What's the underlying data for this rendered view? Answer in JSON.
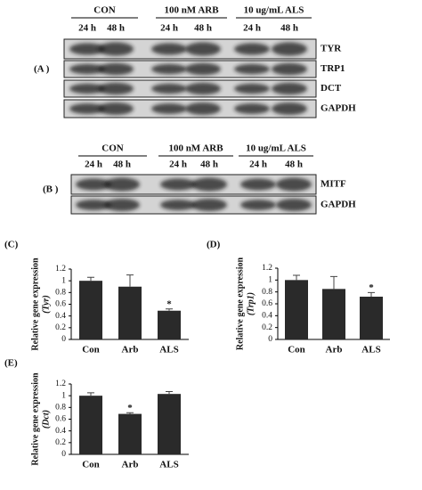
{
  "blots": [
    {
      "label": "(A )",
      "groups": [
        {
          "name": "CON",
          "times": [
            "24 h",
            "48 h"
          ]
        },
        {
          "name": "100 nM ARB",
          "times": [
            "24 h",
            "48 h"
          ]
        },
        {
          "name": "10 ug/mL ALS",
          "times": [
            "24 h",
            "48 h"
          ]
        }
      ],
      "rows": [
        "TYR",
        "TRP1",
        "DCT",
        "GAPDH"
      ]
    },
    {
      "label": "(B )",
      "groups": [
        {
          "name": "CON",
          "times": [
            "24 h",
            "48 h"
          ]
        },
        {
          "name": "100 nM ARB",
          "times": [
            "24 h",
            "48 h"
          ]
        },
        {
          "name": "10 ug/mL ALS",
          "times": [
            "24 h",
            "48 h"
          ]
        }
      ],
      "rows": [
        "MITF",
        "GAPDH"
      ]
    }
  ],
  "chart_data": [
    {
      "type": "bar",
      "title": "(C)",
      "ylabel": "Relative gene expression",
      "ylabel_sub": "(Tyr)",
      "categories": [
        "Con",
        "Arb",
        "ALS"
      ],
      "values": [
        1.0,
        0.9,
        0.49
      ],
      "errors": [
        0.06,
        0.2,
        0.03
      ],
      "markers": [
        null,
        null,
        "*"
      ],
      "color": "#2a2a2a",
      "ylim": [
        0,
        1.2
      ],
      "yticks": [
        0,
        0.2,
        0.4,
        0.6,
        0.8,
        1,
        1.2
      ]
    },
    {
      "type": "bar",
      "title": "(D)",
      "ylabel": "Relative gene expression",
      "ylabel_sub": "(Trp1)",
      "categories": [
        "Con",
        "Arb",
        "ALS"
      ],
      "values": [
        1.0,
        0.85,
        0.72
      ],
      "errors": [
        0.08,
        0.21,
        0.07
      ],
      "markers": [
        null,
        null,
        "*"
      ],
      "color": "#2a2a2a",
      "ylim": [
        0,
        1.2
      ],
      "yticks": [
        0,
        0.2,
        0.4,
        0.6,
        0.8,
        1,
        1.2
      ]
    },
    {
      "type": "bar",
      "title": "(E)",
      "ylabel": "Relative gene expression",
      "ylabel_sub": "(Dct)",
      "categories": [
        "Con",
        "Arb",
        "ALS"
      ],
      "values": [
        1.0,
        0.69,
        1.03
      ],
      "errors": [
        0.05,
        0.02,
        0.04
      ],
      "markers": [
        null,
        "*",
        null
      ],
      "color": "#2a2a2a",
      "ylim": [
        0,
        1.2
      ],
      "yticks": [
        0,
        0.2,
        0.4,
        0.6,
        0.8,
        1,
        1.2
      ]
    }
  ]
}
